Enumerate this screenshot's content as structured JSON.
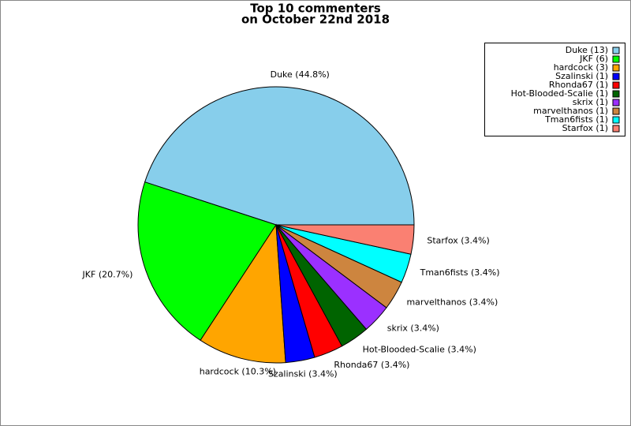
{
  "chart_data": {
    "type": "pie",
    "title": [
      "Top 10 commenters",
      "on October 22nd 2018"
    ],
    "values": [
      44.8,
      20.7,
      10.3,
      3.4,
      3.4,
      3.4,
      3.4,
      3.4,
      3.4,
      3.4
    ],
    "value_labels": [
      "Duke (44.8%)",
      "JKF (20.7%)",
      "hardcock (10.3%)",
      "Szalinski (3.4%)",
      "Rhonda67 (3.4%)",
      "Hot-Blooded-Scalie (3.4%)",
      "skrix (3.4%)",
      "marvelthanos (3.4%)",
      "Tman6fists (3.4%)",
      "Starfox (3.4%)"
    ],
    "legend_labels": [
      "Duke (13)",
      "JKF (6)",
      "hardcock (3)",
      "Szalinski (1)",
      "Rhonda67 (1)",
      "Hot-Blooded-Scalie (1)",
      "skrix (1)",
      "marvelthanos (1)",
      "Tman6fists (1)",
      "Starfox (1)"
    ],
    "colors": [
      "#87ceeb",
      "#00ff00",
      "#ffa500",
      "#0000ff",
      "#ff0000",
      "#006400",
      "#9b30ff",
      "#cd853f",
      "#00ffff",
      "#fa8072"
    ],
    "legend": "upper right"
  }
}
